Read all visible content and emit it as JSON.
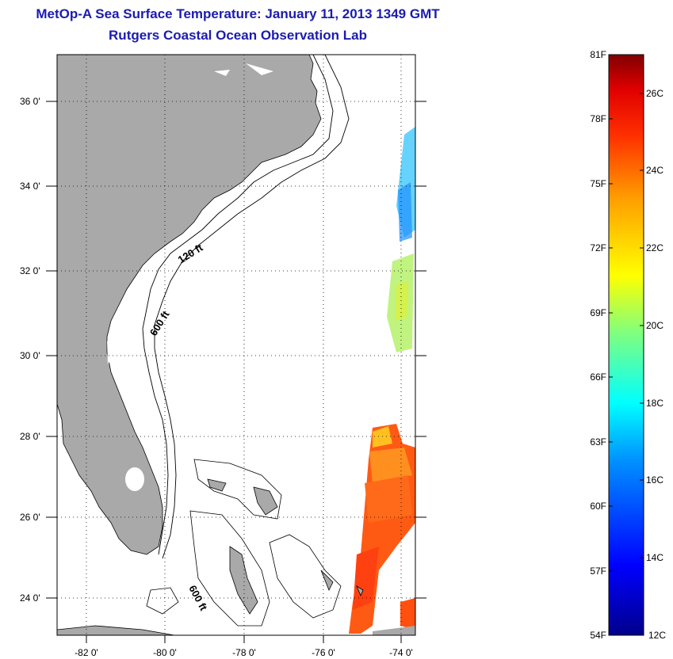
{
  "header": {
    "title": "MetOp-A Sea Surface Temperature:  January 11, 2013 1349 GMT",
    "subtitle": "Rutgers Coastal Ocean Observation Lab"
  },
  "map": {
    "lat_ticks": [
      "36 0'",
      "34 0'",
      "32 0'",
      "30 0'",
      "28 0'",
      "26 0'",
      "24 0'"
    ],
    "lon_ticks": [
      "-82 0'",
      "-80 0'",
      "-78 0'",
      "-76 0'",
      "-74 0'"
    ],
    "contour_labels": [
      "120 ft",
      "600 ft",
      "600 ft"
    ],
    "colors": {
      "land": "#a9a9a9",
      "grid": "#000000",
      "title": "#1b1bb0"
    }
  },
  "colorbar": {
    "fahrenheit_labels": [
      "81F",
      "78F",
      "75F",
      "72F",
      "69F",
      "66F",
      "63F",
      "60F",
      "57F",
      "54F"
    ],
    "celsius_labels": [
      "26C",
      "24C",
      "22C",
      "20C",
      "18C",
      "16C",
      "14C",
      "12C"
    ],
    "colormap": "jet"
  }
}
